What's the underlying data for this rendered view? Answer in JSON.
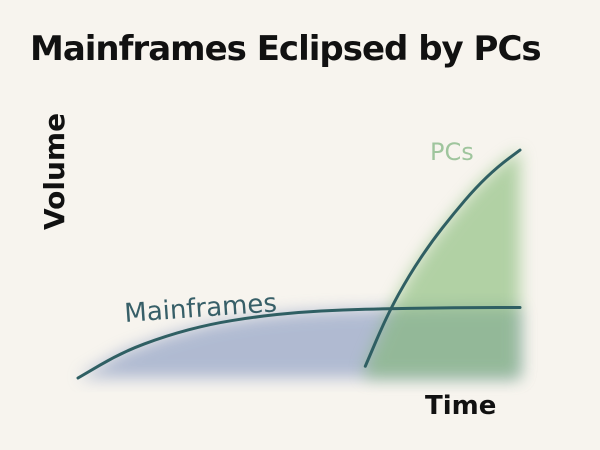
{
  "chart_data": {
    "type": "area",
    "title": "Mainframes Eclipsed by PCs",
    "xlabel": "Time",
    "ylabel": "Volume",
    "grid": false,
    "legend": "none",
    "xlim": [
      0,
      100
    ],
    "ylim": [
      0,
      100
    ],
    "series": [
      {
        "name": "Mainframes",
        "color": "#2f5f63",
        "fill_color": "#6f86b8",
        "x": [
          0,
          10,
          20,
          30,
          40,
          50,
          60,
          70,
          80,
          90,
          100
        ],
        "y": [
          0,
          11,
          18,
          23,
          26,
          28,
          29,
          29.5,
          29.8,
          30,
          30
        ]
      },
      {
        "name": "PCs",
        "color": "#2f5f63",
        "fill_color": "#7fb86f",
        "x": [
          65,
          70,
          75,
          80,
          85,
          90,
          95,
          100
        ],
        "y": [
          5,
          27,
          44,
          58,
          70,
          81,
          90,
          97
        ]
      }
    ]
  }
}
